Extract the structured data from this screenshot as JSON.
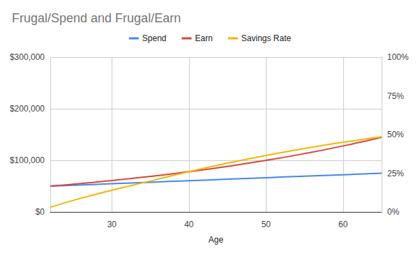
{
  "chart_data": {
    "type": "line",
    "title": "Frugal/Spend and Frugal/Earn",
    "x_label": "Age",
    "x": [
      22,
      25,
      30,
      35,
      40,
      45,
      50,
      55,
      60,
      65
    ],
    "series": [
      {
        "name": "Spend",
        "color": "#4285f4",
        "values": [
          50000,
          51700,
          54700,
          57600,
          60500,
          63400,
          66300,
          69200,
          72100,
          75000
        ]
      },
      {
        "name": "Earn",
        "color": "#db4437",
        "values": [
          50000,
          53800,
          60900,
          68900,
          78000,
          88300,
          99900,
          113000,
          127900,
          144700
        ]
      },
      {
        "name": "Savings Rate",
        "color": "#f4b400",
        "axis": "y2",
        "values": [
          3,
          7.5,
          14,
          20,
          26,
          31.5,
          36.5,
          41,
          45,
          48.5
        ]
      }
    ],
    "xlim": [
      22,
      65
    ],
    "xticks": [
      30,
      40,
      50,
      60
    ],
    "ylim": [
      0,
      300000
    ],
    "yticks": [
      {
        "value": 0,
        "label": "$0"
      },
      {
        "value": 100000,
        "label": "$100,000"
      },
      {
        "value": 200000,
        "label": "$200,000"
      },
      {
        "value": 300000,
        "label": "$300,000"
      }
    ],
    "y2lim": [
      0,
      100
    ],
    "y2ticks": [
      {
        "value": 0,
        "label": "0%"
      },
      {
        "value": 25,
        "label": "25%"
      },
      {
        "value": 50,
        "label": "50%"
      },
      {
        "value": 75,
        "label": "75%"
      },
      {
        "value": 100,
        "label": "100%"
      }
    ],
    "grid": true,
    "legend": "top"
  }
}
